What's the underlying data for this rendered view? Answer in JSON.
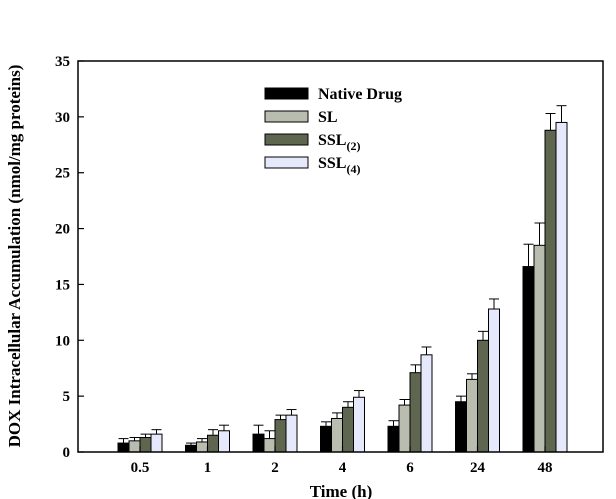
{
  "chart_data": {
    "type": "bar",
    "title": "",
    "xlabel": "Time (h)",
    "ylabel": "DOX Intracellular Accumulation (nmol/mg proteins)",
    "ylim": [
      0,
      35
    ],
    "yticks": [
      "0",
      "5",
      "10",
      "15",
      "20",
      "25",
      "30",
      "35"
    ],
    "categories": [
      "0.5",
      "1",
      "2",
      "4",
      "6",
      "24",
      "48"
    ],
    "legend_position": "top-center",
    "grid": false,
    "series": [
      {
        "name": "Native Drug",
        "name_main": "Native Drug",
        "name_sub": "",
        "color": "#000000",
        "values": [
          0.8,
          0.6,
          1.6,
          2.3,
          2.3,
          4.5,
          16.6
        ],
        "errors": [
          0.4,
          0.2,
          0.8,
          0.4,
          0.5,
          0.5,
          2.0
        ]
      },
      {
        "name": "SL",
        "name_main": "SL",
        "name_sub": "",
        "color": "#b9bdb0",
        "values": [
          1.0,
          0.9,
          1.2,
          3.0,
          4.2,
          6.5,
          18.5
        ],
        "errors": [
          0.3,
          0.3,
          0.7,
          0.5,
          0.5,
          0.5,
          2.0
        ]
      },
      {
        "name": "SSL(2)",
        "name_main": "SSL",
        "name_sub": "(2)",
        "color": "#5f6650",
        "values": [
          1.3,
          1.5,
          2.9,
          4.0,
          7.1,
          10.0,
          28.8
        ],
        "errors": [
          0.3,
          0.5,
          0.4,
          0.5,
          0.7,
          0.8,
          1.5
        ]
      },
      {
        "name": "SSL(4)",
        "name_main": "SSL",
        "name_sub": "(4)",
        "color": "#e6e8fb",
        "values": [
          1.6,
          1.9,
          3.3,
          4.9,
          8.7,
          12.8,
          29.5
        ],
        "errors": [
          0.4,
          0.5,
          0.5,
          0.6,
          0.7,
          0.9,
          1.5
        ]
      }
    ]
  }
}
